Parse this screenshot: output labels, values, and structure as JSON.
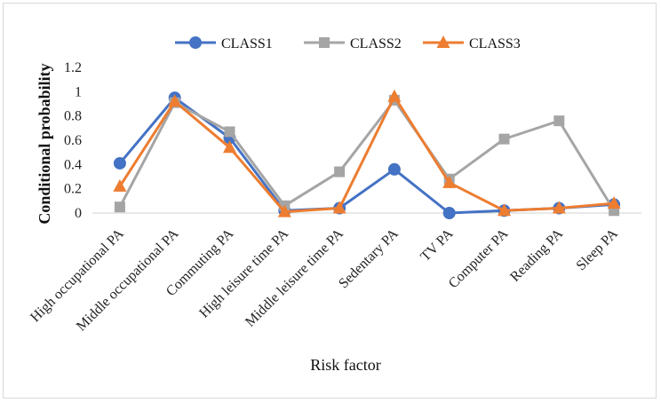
{
  "chart_data": {
    "type": "line",
    "xlabel": "Risk factor",
    "ylabel": "Conditional probability",
    "ylim": [
      0,
      1.2
    ],
    "yticks": [
      0,
      0.2,
      0.4,
      0.6,
      0.8,
      1,
      1.2
    ],
    "grid": false,
    "legend": "top",
    "categories": [
      "High occupational PA",
      "Middle occupational PA",
      "Commuting PA",
      "High leisure time PA",
      "Middle leisure time PA",
      "Sedentary PA",
      "TV PA",
      "Computer PA",
      "Reading PA",
      "Sleep PA"
    ],
    "series": [
      {
        "name": "CLASS1",
        "color": "#4472c4",
        "marker": "circle",
        "values": [
          0.41,
          0.95,
          0.62,
          0.02,
          0.04,
          0.36,
          0.0,
          0.02,
          0.04,
          0.07
        ]
      },
      {
        "name": "CLASS2",
        "color": "#a5a5a5",
        "marker": "square",
        "values": [
          0.05,
          0.91,
          0.67,
          0.06,
          0.34,
          0.93,
          0.28,
          0.61,
          0.76,
          0.02
        ]
      },
      {
        "name": "CLASS3",
        "color": "#ed7d31",
        "marker": "triangle",
        "values": [
          0.22,
          0.92,
          0.54,
          0.01,
          0.04,
          0.96,
          0.25,
          0.02,
          0.04,
          0.08
        ]
      }
    ]
  }
}
